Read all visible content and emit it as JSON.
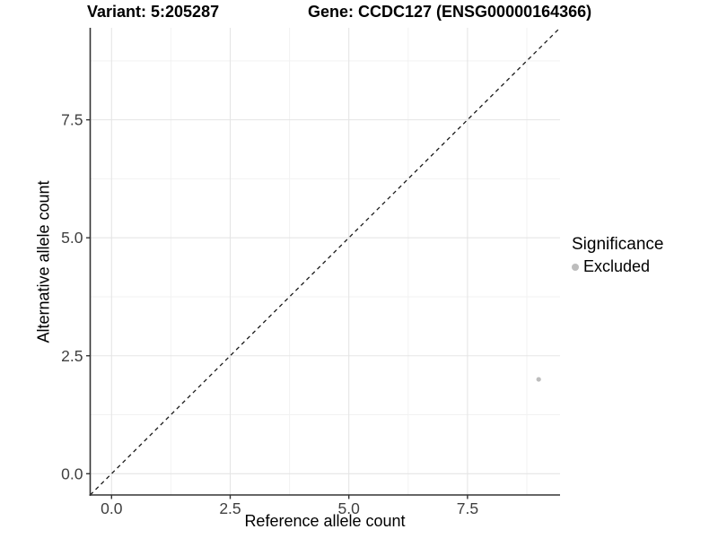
{
  "titles": {
    "variant": "Variant: 5:205287",
    "gene": "Gene: CCDC127 (ENSG00000164366)"
  },
  "axes": {
    "x_label": "Reference allele count",
    "y_label": "Alternative allele count"
  },
  "legend": {
    "title": "Significance",
    "items": [
      {
        "label": "Excluded",
        "color": "#bdbdbd"
      }
    ]
  },
  "chart_data": {
    "type": "scatter",
    "title_left": "Variant: 5:205287",
    "title_right": "Gene: CCDC127 (ENSG00000164366)",
    "xlabel": "Reference allele count",
    "ylabel": "Alternative allele count",
    "xlim": [
      -0.45,
      9.45
    ],
    "ylim": [
      -0.45,
      9.45
    ],
    "x_ticks": [
      {
        "value": 0,
        "label": "0.0"
      },
      {
        "value": 2.5,
        "label": "2.5"
      },
      {
        "value": 5,
        "label": "5.0"
      },
      {
        "value": 7.5,
        "label": "7.5"
      }
    ],
    "y_ticks": [
      {
        "value": 0,
        "label": "0.0"
      },
      {
        "value": 2.5,
        "label": "2.5"
      },
      {
        "value": 5,
        "label": "5.0"
      },
      {
        "value": 7.5,
        "label": "7.5"
      }
    ],
    "x_minor_ticks": [
      1.25,
      3.75,
      6.25,
      8.75
    ],
    "y_minor_ticks": [
      1.25,
      3.75,
      6.25,
      8.75
    ],
    "grid": true,
    "legend_position": "right",
    "series": [
      {
        "name": "Excluded",
        "color": "#bdbdbd",
        "points": [
          {
            "x": 9,
            "y": 2
          }
        ]
      }
    ],
    "reference_line": {
      "type": "y=x",
      "style": "dashed",
      "color": "#1a1a1a"
    },
    "colors": {
      "grid_major": "#e5e5e5",
      "grid_minor": "#f2f2f2",
      "axis_line": "#333333",
      "tick_mark": "#333333",
      "tick_label": "#404040",
      "point": "#bdbdbd"
    }
  }
}
